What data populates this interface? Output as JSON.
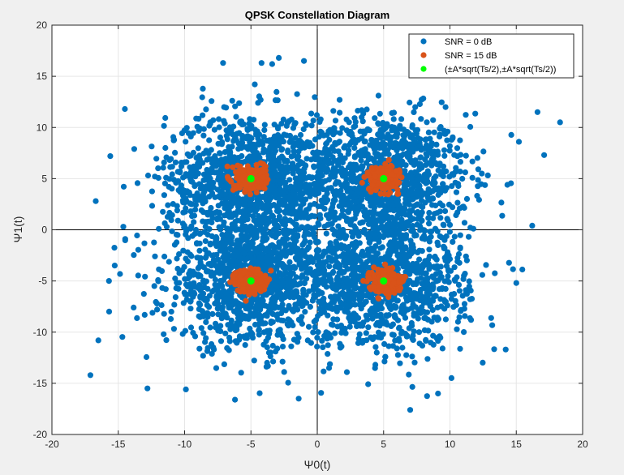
{
  "chart_data": {
    "type": "scatter",
    "title": "QPSK Constellation Diagram",
    "xlabel": "Ψ0(t)",
    "ylabel": "Ψ1(t)",
    "xlim": [
      -20,
      20
    ],
    "ylim": [
      -20,
      20
    ],
    "xticks": [
      -20,
      -15,
      -10,
      -5,
      0,
      5,
      10,
      15,
      20
    ],
    "yticks": [
      -20,
      -15,
      -10,
      -5,
      0,
      5,
      10,
      15,
      20
    ],
    "grid": true,
    "legend_position": "top-right",
    "ideal_points": [
      [
        5,
        5
      ],
      [
        -5,
        5
      ],
      [
        -5,
        -5
      ],
      [
        5,
        -5
      ]
    ],
    "series": [
      {
        "name": "SNR = 0 dB",
        "color": "#0072bd",
        "marker": "filled-circle",
        "cluster_centers": [
          [
            5,
            5
          ],
          [
            -5,
            5
          ],
          [
            -5,
            -5
          ],
          [
            5,
            -5
          ]
        ],
        "cluster_std": 3.2,
        "approx_points_per_cluster": 1100,
        "outliers": [
          [
            18.3,
            10.5
          ],
          [
            16.6,
            11.5
          ],
          [
            -17.1,
            -14.2
          ],
          [
            -16.5,
            -10.8
          ],
          [
            -14.5,
            11.8
          ],
          [
            7.0,
            -17.6
          ],
          [
            -6.2,
            -16.6
          ],
          [
            -1.4,
            -16.5
          ],
          [
            16.2,
            0.4
          ],
          [
            -16.7,
            2.8
          ],
          [
            -15.7,
            -5.0
          ],
          [
            -4.2,
            16.3
          ],
          [
            -3.4,
            16.2
          ],
          [
            -1.0,
            16.5
          ],
          [
            -2.9,
            16.8
          ],
          [
            -7.1,
            16.3
          ],
          [
            14.2,
            -11.7
          ],
          [
            9.1,
            -16.0
          ],
          [
            -9.9,
            -15.6
          ],
          [
            -12.8,
            -15.5
          ],
          [
            -13.8,
            7.9
          ],
          [
            15.0,
            -5.2
          ],
          [
            15.2,
            8.6
          ],
          [
            -15.6,
            7.2
          ],
          [
            17.1,
            7.3
          ]
        ]
      },
      {
        "name": "SNR = 15 dB",
        "color": "#d95319",
        "marker": "filled-circle",
        "cluster_centers": [
          [
            5,
            5
          ],
          [
            -5,
            5
          ],
          [
            -5,
            -5
          ],
          [
            5,
            -5
          ]
        ],
        "cluster_std": 0.55,
        "approx_points_per_cluster": 260
      },
      {
        "name": "(±A*sqrt(Ts/2),±A*sqrt(Ts/2))",
        "color": "#00ff00",
        "marker": "filled-circle",
        "points": [
          [
            5,
            5
          ],
          [
            -5,
            5
          ],
          [
            -5,
            -5
          ],
          [
            5,
            -5
          ]
        ]
      }
    ]
  }
}
